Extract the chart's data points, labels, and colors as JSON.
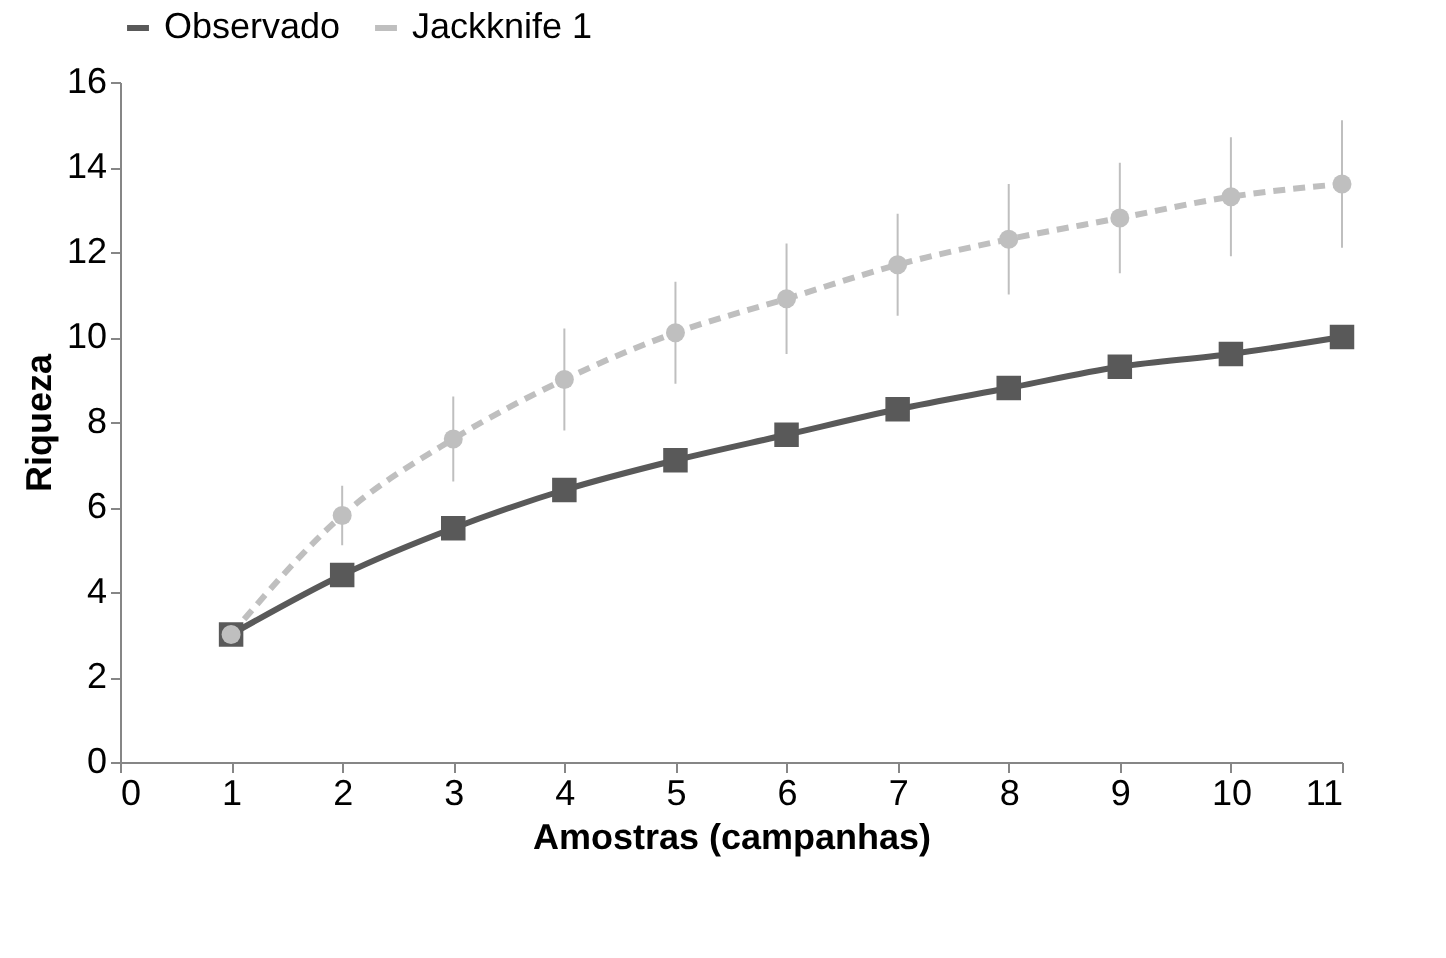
{
  "chart_data": {
    "type": "line",
    "xlabel": "Amostras (campanhas)",
    "ylabel": "Riqueza",
    "x": [
      1,
      2,
      3,
      4,
      5,
      6,
      7,
      8,
      9,
      10,
      11
    ],
    "series": [
      {
        "name": "Observado",
        "color": "#595959",
        "marker": "square",
        "line_style": "solid",
        "values": [
          3,
          4.4,
          5.5,
          6.4,
          7.1,
          7.7,
          8.3,
          8.8,
          9.3,
          9.6,
          10
        ]
      },
      {
        "name": "Jackknife 1",
        "color": "#bfbfbf",
        "marker": "circle",
        "line_style": "dashed",
        "values": [
          3,
          5.8,
          7.6,
          9,
          10.1,
          10.9,
          11.7,
          12.3,
          12.8,
          13.3,
          13.6
        ],
        "errors": [
          null,
          0.7,
          1,
          1.2,
          1.2,
          1.3,
          1.2,
          1.3,
          1.3,
          1.4,
          1.5
        ]
      }
    ],
    "xlim": [
      0,
      11
    ],
    "xticks": [
      0,
      1,
      2,
      3,
      4,
      5,
      6,
      7,
      8,
      9,
      10,
      11
    ],
    "ylim": [
      0,
      16
    ],
    "yticks": [
      0,
      2,
      4,
      6,
      8,
      10,
      12,
      14,
      16
    ],
    "grid": false,
    "legend": "top"
  }
}
